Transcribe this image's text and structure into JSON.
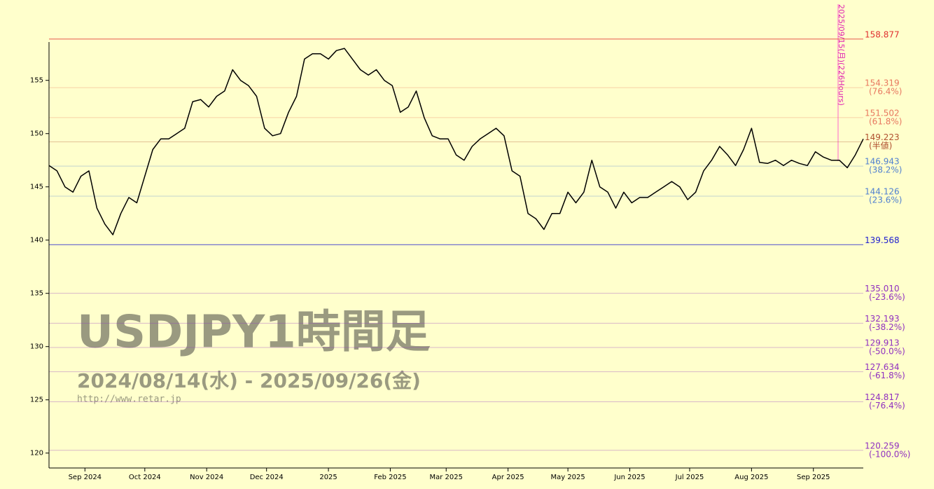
{
  "chart_data": {
    "type": "line",
    "title": "USDJPY1時間足",
    "subtitle": "2024/08/14(水) - 2025/09/26(金)",
    "source": "http://www.retar.jp",
    "annotation": "2025/09/15(月)(226Hours)",
    "color": "#000000",
    "values": [
      147,
      146.5,
      145,
      144.5,
      146,
      146.5,
      143,
      141.5,
      140.5,
      142.5,
      144,
      143.5,
      146,
      148.5,
      149.5,
      149.5,
      150,
      150.5,
      153,
      153.2,
      152.5,
      153.5,
      154,
      156,
      155,
      154.5,
      153.5,
      150.5,
      149.8,
      150,
      152,
      153.5,
      157,
      157.5,
      157.5,
      157,
      157.8,
      158,
      157,
      156,
      155.5,
      156,
      155,
      154.5,
      152,
      152.5,
      154,
      151.5,
      149.8,
      149.5,
      149.5,
      148,
      147.5,
      148.8,
      149.5,
      150,
      150.5,
      149.8,
      146.5,
      146,
      142.5,
      142,
      141,
      142.5,
      142.5,
      144.5,
      143.5,
      144.5,
      147.5,
      145,
      144.5,
      143,
      144.5,
      143.5,
      144,
      144,
      144.5,
      145,
      145.5,
      145,
      143.8,
      144.5,
      146.5,
      147.5,
      148.8,
      148,
      147,
      148.5,
      150.5,
      147.3,
      147.2,
      147.5,
      147,
      147.5,
      147.2,
      147,
      148.3,
      147.8,
      147.5,
      147.5,
      146.8,
      148,
      149.5
    ],
    "xlim": [
      0,
      102
    ],
    "xticks": [
      {
        "value": 4.5,
        "label": "Sep 2024"
      },
      {
        "value": 12,
        "label": "Oct 2024"
      },
      {
        "value": 19.75,
        "label": "Nov 2024"
      },
      {
        "value": 27.25,
        "label": "Dec 2024"
      },
      {
        "value": 35,
        "label": "2025"
      },
      {
        "value": 42.75,
        "label": "Feb 2025"
      },
      {
        "value": 49.75,
        "label": "Mar 2025"
      },
      {
        "value": 57.5,
        "label": "Apr 2025"
      },
      {
        "value": 65,
        "label": "May 2025"
      },
      {
        "value": 72.75,
        "label": "Jun 2025"
      },
      {
        "value": 80.25,
        "label": "Jul 2025"
      },
      {
        "value": 88,
        "label": "Aug 2025"
      },
      {
        "value": 95.75,
        "label": "Sep 2025"
      }
    ],
    "ylim": [
      118.6,
      158.6
    ],
    "yticks": [
      120,
      125,
      130,
      135,
      140,
      145,
      150,
      155
    ],
    "levels": [
      {
        "value": 158.877,
        "label": "158.877",
        "color": "#e03030"
      },
      {
        "value": 154.319,
        "label": "154.319",
        "ratio": "(76.4%)",
        "color": "#e87860"
      },
      {
        "value": 151.502,
        "label": "151.502",
        "ratio": "(61.8%)",
        "color": "#e87860"
      },
      {
        "value": 149.223,
        "label": "149.223",
        "ratio": "(半値)",
        "color": "#b05030"
      },
      {
        "value": 146.943,
        "label": "146.943",
        "ratio": "(38.2%)",
        "color": "#5080d0"
      },
      {
        "value": 144.126,
        "label": "144.126",
        "ratio": "(23.6%)",
        "color": "#5080d0"
      },
      {
        "value": 139.568,
        "label": "139.568",
        "color": "#2020d0"
      },
      {
        "value": 135.01,
        "label": "135.010",
        "ratio": "(-23.6%)",
        "color": "#9030c0"
      },
      {
        "value": 132.193,
        "label": "132.193",
        "ratio": "(-38.2%)",
        "color": "#9030c0"
      },
      {
        "value": 129.913,
        "label": "129.913",
        "ratio": "(-50.0%)",
        "color": "#9030c0"
      },
      {
        "value": 127.634,
        "label": "127.634",
        "ratio": "(-61.8%)",
        "color": "#9030c0"
      },
      {
        "value": 124.817,
        "label": "124.817",
        "ratio": "(-76.4%)",
        "color": "#9030c0"
      },
      {
        "value": 120.259,
        "label": "120.259",
        "ratio": "(-100.0%)",
        "color": "#9030c0"
      }
    ]
  }
}
